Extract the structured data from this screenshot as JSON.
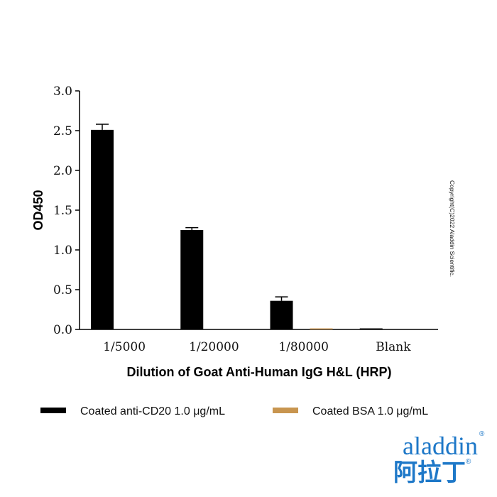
{
  "chart_data": {
    "type": "bar",
    "title": "",
    "xlabel": "Dilution of Goat Anti-Human IgG H&L (HRP)",
    "ylabel": "OD450",
    "ylim": [
      0,
      3.0
    ],
    "yticks": [
      "0.0",
      "0.5",
      "1.0",
      "1.5",
      "2.0",
      "2.5",
      "3.0"
    ],
    "categories": [
      "1/5000",
      "1/20000",
      "1/80000",
      "Blank"
    ],
    "series": [
      {
        "name": "Coated anti-CD20 1.0 μg/mL",
        "color": "#000000",
        "values": [
          2.51,
          1.25,
          0.36,
          0.01
        ],
        "errors": [
          0.07,
          0.03,
          0.05,
          0.0
        ]
      },
      {
        "name": "Coated BSA 1.0 μg/mL",
        "color": "#c8954f",
        "values": [
          0.0,
          0.0,
          0.01,
          0.0
        ],
        "errors": [
          0.0,
          0.0,
          0.0,
          0.0
        ]
      }
    ],
    "legend_position": "bottom",
    "grid": false
  },
  "copyright": "Copyright(C)2022 Aladdin Scientific.",
  "logo": {
    "latin": "aladdin",
    "cjk": "阿拉丁",
    "reg_mark": "®",
    "color": "#1e78c8"
  }
}
